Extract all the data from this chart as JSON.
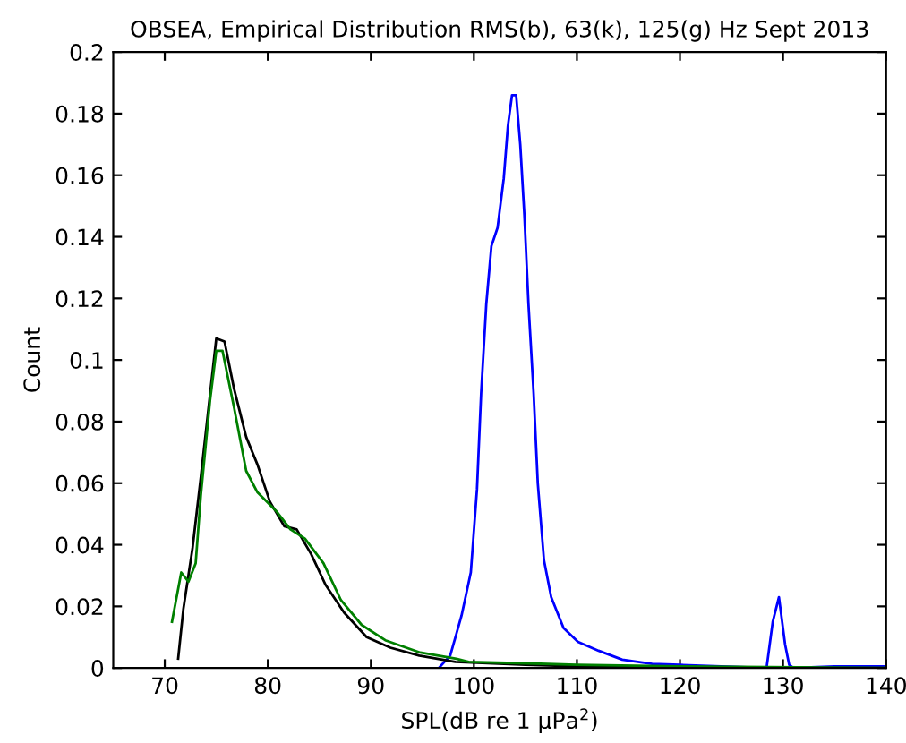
{
  "chart_data": {
    "type": "line",
    "title": "OBSEA, Empirical Distribution RMS(b), 63(k), 125(g) Hz Sept 2013",
    "xlabel": "SPL(dB re 1 µPa$^{2}$)",
    "ylabel": "Count",
    "xlim": [
      65,
      140
    ],
    "xticks": [
      70,
      80,
      90,
      100,
      110,
      120,
      130,
      140
    ],
    "ylim": [
      0,
      0.2
    ],
    "yticks": [
      0,
      0.02,
      0.04,
      0.06,
      0.08,
      0.1,
      0.12,
      0.14,
      0.16,
      0.18,
      0.2
    ],
    "grid": false,
    "legend": false,
    "marker": "none",
    "line_style": "solid",
    "series": [
      {
        "color": "#0000ff",
        "x": [
          96.6,
          97.7,
          98.8,
          99.7,
          100.3,
          100.7,
          101.2,
          101.7,
          102.3,
          102.9,
          103.3,
          103.7,
          104.1,
          104.5,
          104.9,
          105.3,
          105.8,
          106.2,
          106.8,
          107.5,
          108.7,
          110.1,
          112.1,
          114.4,
          117.3,
          120,
          128.4,
          129.0,
          129.6,
          130.2,
          130.6,
          131,
          135,
          140
        ],
        "values": [
          0,
          0.004,
          0.017,
          0.031,
          0.058,
          0.089,
          0.118,
          0.137,
          0.143,
          0.159,
          0.176,
          0.186,
          0.186,
          0.17,
          0.147,
          0.118,
          0.089,
          0.06,
          0.035,
          0.023,
          0.013,
          0.0085,
          0.0056,
          0.0027,
          0.0013,
          0.001,
          0,
          0.015,
          0.023,
          0.0076,
          0.001,
          0,
          0.0005,
          0.0005
        ]
      },
      {
        "color": "#000000",
        "x": [
          71.3,
          71.8,
          72.7,
          73.5,
          74.4,
          75.0,
          75.8,
          76.7,
          77.9,
          79.0,
          80.2,
          81.6,
          82.8,
          84.2,
          85.6,
          87.4,
          89.6,
          91.9,
          94.7,
          98.2,
          105,
          110,
          120,
          140
        ],
        "values": [
          0.003,
          0.019,
          0.039,
          0.062,
          0.089,
          0.107,
          0.106,
          0.091,
          0.075,
          0.066,
          0.054,
          0.046,
          0.045,
          0.037,
          0.027,
          0.018,
          0.01,
          0.0066,
          0.004,
          0.002,
          0.001,
          0.0005,
          0,
          0
        ]
      },
      {
        "color": "#008000",
        "x": [
          70.7,
          71.6,
          72.3,
          73.0,
          73.5,
          74.4,
          75.0,
          75.6,
          76.7,
          77.9,
          79.0,
          80.8,
          82.2,
          83.6,
          85.4,
          87.1,
          89.1,
          91.4,
          94.8,
          98.3,
          99.5,
          105,
          110,
          120,
          140
        ],
        "values": [
          0.015,
          0.031,
          0.028,
          0.034,
          0.056,
          0.087,
          0.103,
          0.103,
          0.085,
          0.064,
          0.057,
          0.051,
          0.045,
          0.042,
          0.034,
          0.022,
          0.014,
          0.009,
          0.005,
          0.003,
          0.002,
          0.0015,
          0.001,
          0.0005,
          0
        ]
      }
    ]
  }
}
